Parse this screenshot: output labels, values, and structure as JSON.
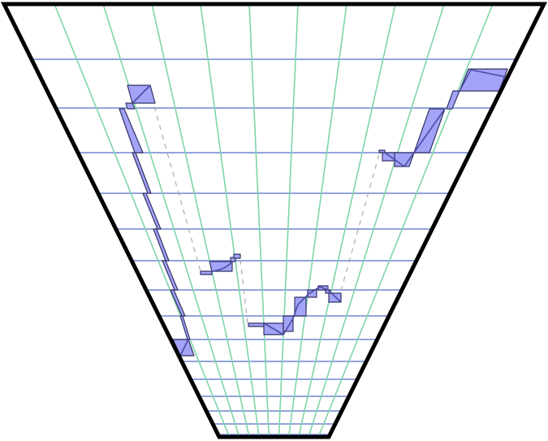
{
  "colors": {
    "frame": "#000000",
    "horizontal_grid": "#6f86cf",
    "radial_grid": "#7fd4a8",
    "block_fill": "#a3a3f7",
    "block_stroke": "#333366",
    "connector": "#aaaaaa"
  }
}
